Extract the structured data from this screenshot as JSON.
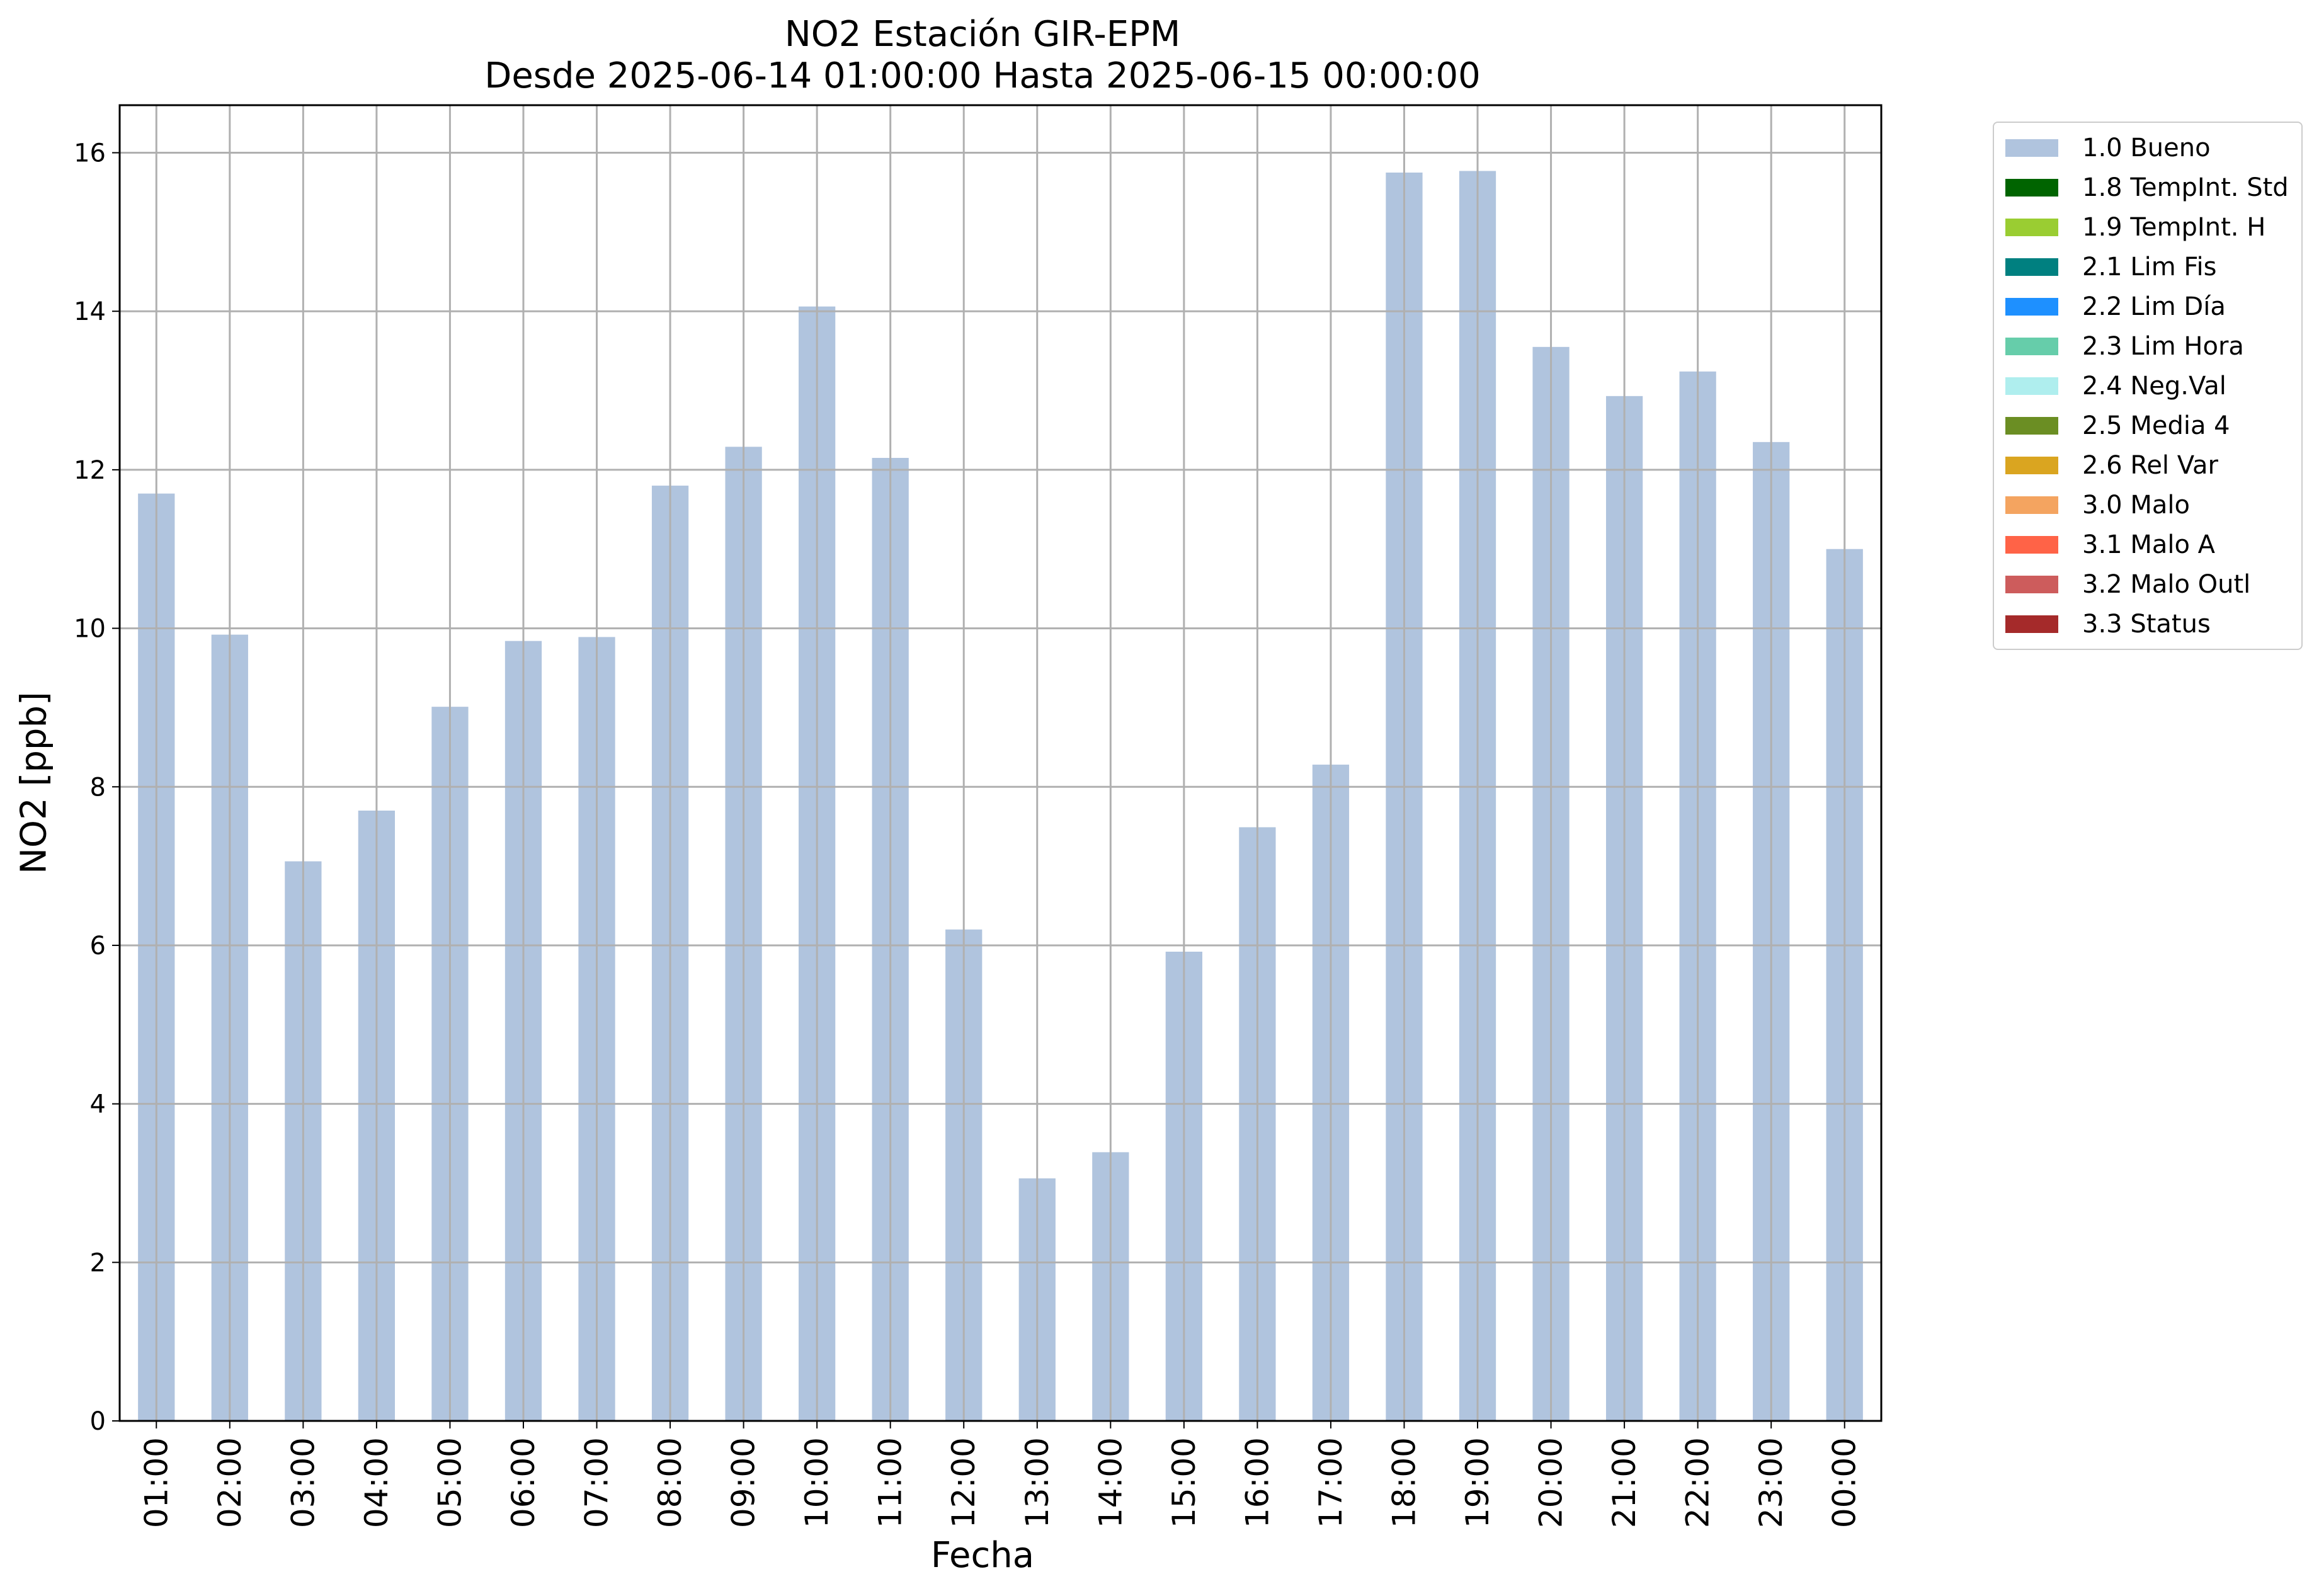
{
  "chart_data": {
    "type": "bar",
    "title": "NO2 Estación GIR-EPM",
    "subtitle": "Desde 2025-06-14 01:00:00 Hasta 2025-06-15 00:00:00",
    "xlabel": "Fecha",
    "ylabel": "NO2 [ppb]",
    "ylim": [
      0,
      16.6
    ],
    "yticks": [
      "0",
      "2",
      "4",
      "6",
      "8",
      "10",
      "12",
      "14",
      "16"
    ],
    "grid": true,
    "legend_position": "outside-top-right",
    "categories": [
      "01:00",
      "02:00",
      "03:00",
      "04:00",
      "05:00",
      "06:00",
      "07:00",
      "08:00",
      "09:00",
      "10:00",
      "11:00",
      "12:00",
      "13:00",
      "14:00",
      "15:00",
      "16:00",
      "17:00",
      "18:00",
      "19:00",
      "20:00",
      "21:00",
      "22:00",
      "23:00",
      "00:00"
    ],
    "series": [
      {
        "name": "1.0 Bueno",
        "color": "#b0c4de",
        "values": [
          11.7,
          9.92,
          7.06,
          7.7,
          9.01,
          9.84,
          9.89,
          11.8,
          12.29,
          14.06,
          12.15,
          6.2,
          3.06,
          3.39,
          5.92,
          7.49,
          8.28,
          15.75,
          15.77,
          13.55,
          12.93,
          13.24,
          12.35,
          11.0
        ]
      }
    ],
    "legend": [
      {
        "label": "1.0 Bueno",
        "color": "#b0c4de"
      },
      {
        "label": "1.8 TempInt. Std",
        "color": "#006400"
      },
      {
        "label": "1.9 TempInt. H",
        "color": "#9acd32"
      },
      {
        "label": "2.1 Lim Fis",
        "color": "#008080"
      },
      {
        "label": "2.2 Lim Día",
        "color": "#1e90ff"
      },
      {
        "label": "2.3 Lim Hora",
        "color": "#66cdaa"
      },
      {
        "label": "2.4 Neg.Val",
        "color": "#afeeee"
      },
      {
        "label": "2.5 Media 4",
        "color": "#6b8e23"
      },
      {
        "label": "2.6 Rel Var",
        "color": "#daa520"
      },
      {
        "label": "3.0 Malo",
        "color": "#f4a460"
      },
      {
        "label": "3.1 Malo A",
        "color": "#ff6347"
      },
      {
        "label": "3.2 Malo Outl",
        "color": "#cd5c5c"
      },
      {
        "label": "3.3 Status",
        "color": "#a52a2a"
      }
    ]
  }
}
